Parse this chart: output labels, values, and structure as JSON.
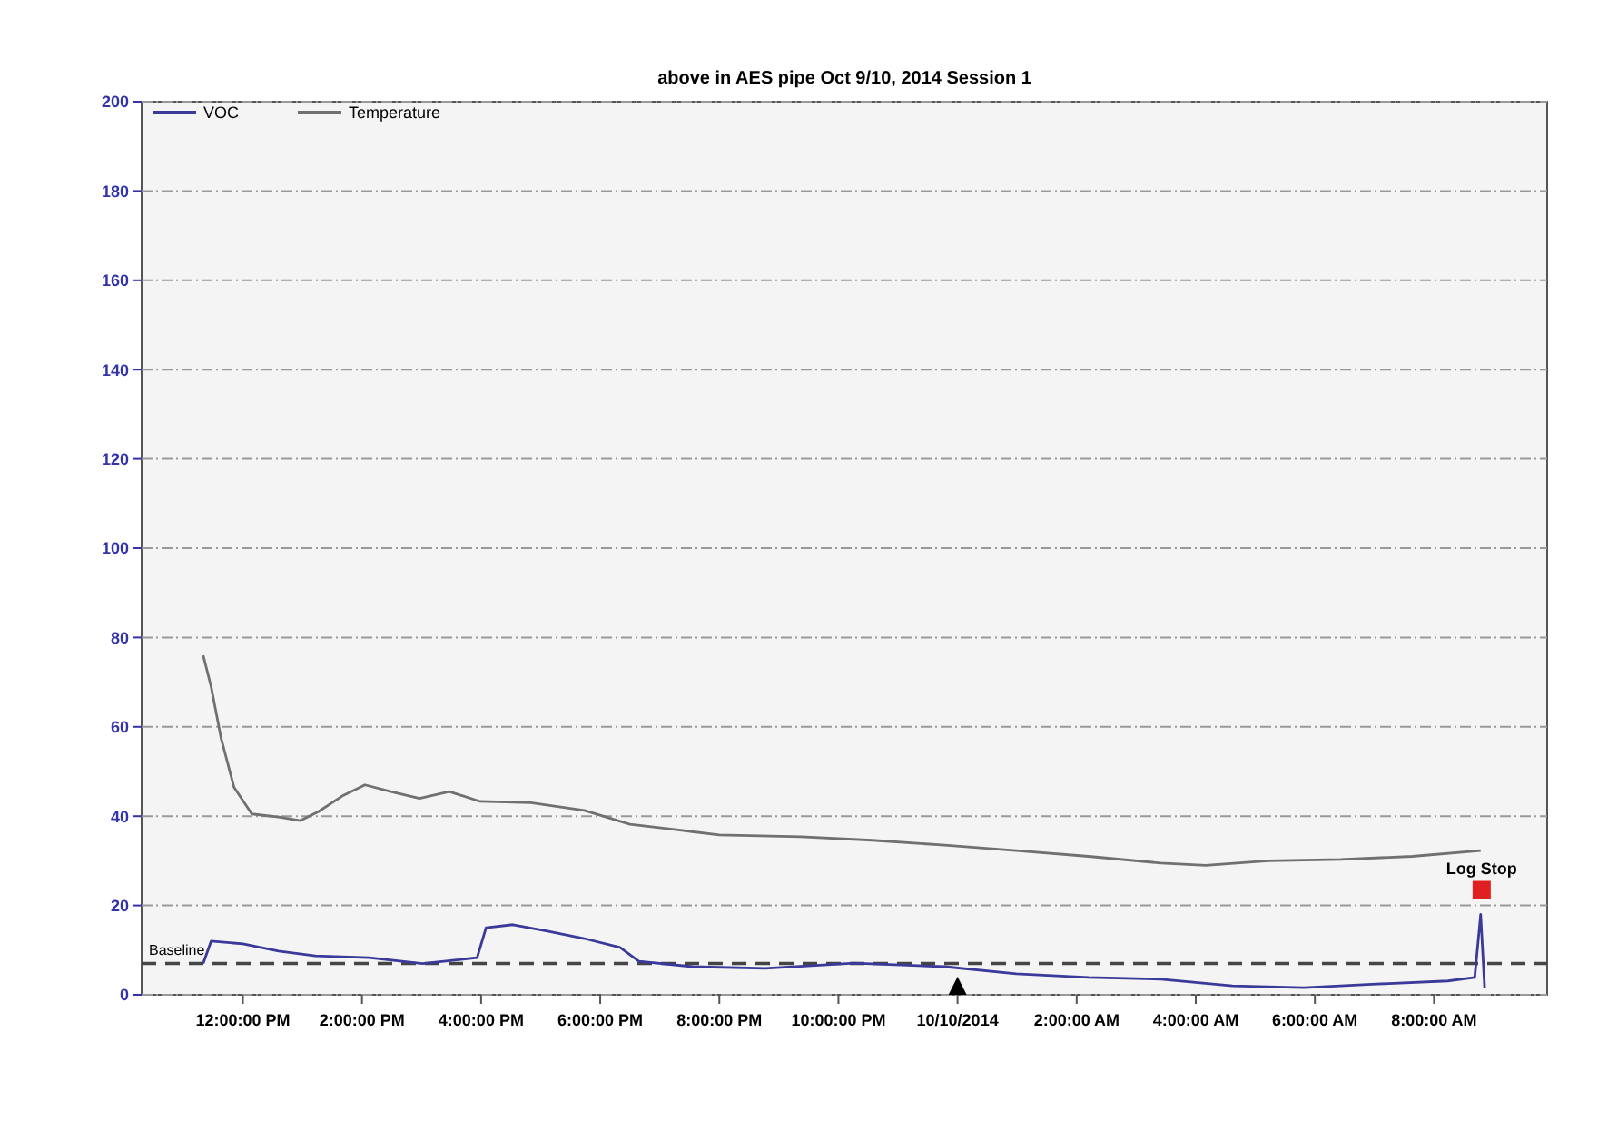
{
  "chart_data": {
    "type": "line",
    "title": "above in AES pipe Oct 9/10, 2014 Session 1",
    "xlim": [
      "2014-10-09T10:18",
      "2014-10-10T09:54"
    ],
    "xticks": [
      {
        "value": "2014-10-09T12:00",
        "label": "12:00:00 PM"
      },
      {
        "value": "2014-10-09T14:00",
        "label": "2:00:00 PM"
      },
      {
        "value": "2014-10-09T16:00",
        "label": "4:00:00 PM"
      },
      {
        "value": "2014-10-09T18:00",
        "label": "6:00:00 PM"
      },
      {
        "value": "2014-10-09T20:00",
        "label": "8:00:00 PM"
      },
      {
        "value": "2014-10-09T22:00",
        "label": "10:00:00 PM"
      },
      {
        "value": "2014-10-10T00:00",
        "label": "10/10/2014"
      },
      {
        "value": "2014-10-10T02:00",
        "label": "2:00:00 AM"
      },
      {
        "value": "2014-10-10T04:00",
        "label": "4:00:00 AM"
      },
      {
        "value": "2014-10-10T06:00",
        "label": "6:00:00 AM"
      },
      {
        "value": "2014-10-10T08:00",
        "label": "8:00:00 AM"
      }
    ],
    "ylim": [
      0,
      200
    ],
    "yticks": [
      0,
      20,
      40,
      60,
      80,
      100,
      120,
      140,
      160,
      180,
      200
    ],
    "grid": "y",
    "legend": "top left",
    "marker": "none",
    "series": [
      {
        "name": "VOC",
        "color": "#3a3a9a",
        "x": [
          "2014-10-09T11:20",
          "2014-10-09T11:28",
          "2014-10-09T12:00",
          "2014-10-09T12:36",
          "2014-10-09T13:13",
          "2014-10-09T14:07",
          "2014-10-09T15:01",
          "2014-10-09T15:56",
          "2014-10-09T16:05",
          "2014-10-09T16:32",
          "2014-10-09T17:08",
          "2014-10-09T17:44",
          "2014-10-09T18:20",
          "2014-10-09T18:39",
          "2014-10-09T19:33",
          "2014-10-09T20:46",
          "2014-10-09T22:16",
          "2014-10-09T23:47",
          "2014-10-10T00:59",
          "2014-10-10T02:12",
          "2014-10-10T03:25",
          "2014-10-10T04:37",
          "2014-10-10T05:49",
          "2014-10-10T07:02",
          "2014-10-10T08:14",
          "2014-10-10T08:41",
          "2014-10-10T08:47",
          "2014-10-10T08:51"
        ],
        "values": [
          7,
          12,
          11.4,
          9.8,
          8.7,
          8.3,
          7,
          8.3,
          15,
          15.7,
          14.2,
          12.6,
          10.6,
          7.5,
          6.3,
          5.9,
          7.1,
          6.3,
          4.7,
          3.9,
          3.5,
          2,
          1.6,
          2.4,
          3.1,
          3.9,
          18,
          1.6
        ]
      },
      {
        "name": "Temperature",
        "color": "#707070",
        "x": [
          "2014-10-09T11:20",
          "2014-10-09T11:28",
          "2014-10-09T11:38",
          "2014-10-09T11:51",
          "2014-10-09T12:09",
          "2014-10-09T12:36",
          "2014-10-09T12:58",
          "2014-10-09T13:16",
          "2014-10-09T13:40",
          "2014-10-09T14:03",
          "2014-10-09T14:29",
          "2014-10-09T14:58",
          "2014-10-09T15:28",
          "2014-10-09T15:59",
          "2014-10-09T16:50",
          "2014-10-09T17:44",
          "2014-10-09T18:30",
          "2014-10-09T19:15",
          "2014-10-09T20:00",
          "2014-10-09T21:22",
          "2014-10-09T22:34",
          "2014-10-09T23:47",
          "2014-10-10T00:59",
          "2014-10-10T02:12",
          "2014-10-10T03:25",
          "2014-10-10T04:10",
          "2014-10-10T05:13",
          "2014-10-10T06:26",
          "2014-10-10T07:38",
          "2014-10-10T08:47"
        ],
        "values": [
          76,
          69,
          57.5,
          46.5,
          40.5,
          39.8,
          39,
          41,
          44.5,
          47,
          45.5,
          44,
          45.5,
          43.3,
          43,
          41.3,
          38.2,
          37,
          35.8,
          35.4,
          34.6,
          33.5,
          32.3,
          31,
          29.5,
          29,
          30,
          30.3,
          31,
          32.3
        ]
      }
    ],
    "ref_lines": [
      {
        "axis": "y",
        "value": 7,
        "label": "Baseline",
        "color": "#444444",
        "line_style": "dashed"
      }
    ],
    "annotations": [
      {
        "text": "Log Stop",
        "x": "2014-10-10T08:48",
        "y": 19
      }
    ]
  }
}
